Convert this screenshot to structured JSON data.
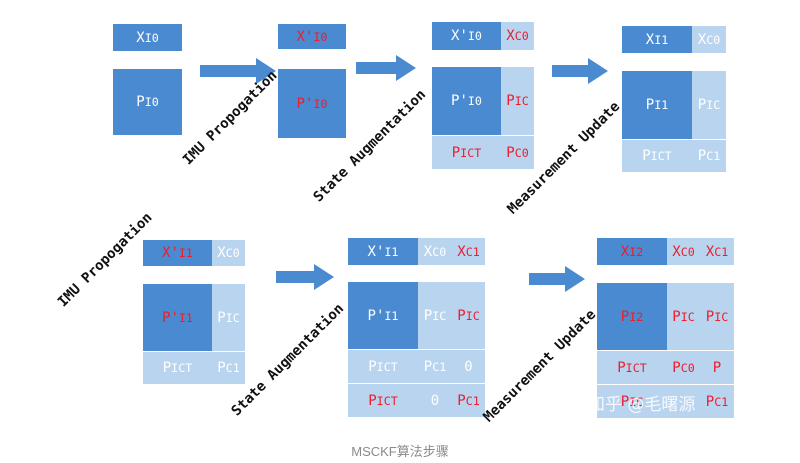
{
  "row1": {
    "s1": {
      "x": "X",
      "x_sub": "I0",
      "p": "P",
      "p_sub": "I0"
    },
    "a1": {
      "label": "IMU Propogation"
    },
    "s2": {
      "x": "X'",
      "x_sub": "I0",
      "p": "P'",
      "p_sub": "I0"
    },
    "a2": {
      "label": "State Augmentation"
    },
    "s3": {
      "x": "X'",
      "x_sub": "I0",
      "xc": "X",
      "xc_sub": "C0",
      "p": "P'",
      "p_sub": "I0",
      "pic": "P",
      "pic_sub": "IC",
      "pict": "P",
      "pict_sub": "IC",
      "pict_sup": "T",
      "pc": "P",
      "pc_sub": "C0"
    },
    "a3": {
      "label": "Measurement Update"
    },
    "s4": {
      "x": "X",
      "x_sub": "I1",
      "xc": "X",
      "xc_sub": "C0",
      "p": "P",
      "p_sub": "I1",
      "pic": "P",
      "pic_sub": "IC",
      "pict": "P",
      "pict_sub": "IC",
      "pict_sup": "T",
      "pc": "P",
      "pc_sub": "C1"
    }
  },
  "row2": {
    "a0": {
      "label": "IMU Propogation"
    },
    "s5": {
      "x": "X'",
      "x_sub": "I1",
      "xc": "X",
      "xc_sub": "C0",
      "p": "P'",
      "p_sub": "I1",
      "pic": "P",
      "pic_sub": "IC",
      "pict": "P",
      "pict_sub": "IC",
      "pict_sup": "T",
      "pc": "P",
      "pc_sub": "C1"
    },
    "a1": {
      "label": "State Augmentation"
    },
    "s6": {
      "x": "X'",
      "x_sub": "I1",
      "xc0": "X",
      "xc0_sub": "C0",
      "xc1": "X",
      "xc1_sub": "C1",
      "p": "P'",
      "p_sub": "I1",
      "pic1": "P",
      "pic1_sub": "IC",
      "pic2": "P",
      "pic2_sub": "IC",
      "pict1": "P",
      "pict1_sub": "IC",
      "pict1_sup": "T",
      "pc1": "P",
      "pc1_sub": "C1",
      "zero1": "0",
      "pict2": "P",
      "pict2_sub": "IC",
      "pict2_sup": "T",
      "zero2": "0",
      "pc1b": "P",
      "pc1b_sub": "C1"
    },
    "a2": {
      "label": "Measurement Update"
    },
    "s7": {
      "x": "X",
      "x_sub": "I2",
      "xc0": "X",
      "xc0_sub": "C0",
      "xc1": "X",
      "xc1_sub": "C1",
      "p": "P",
      "p_sub": "I2",
      "pic1": "P",
      "pic1_sub": "IC",
      "pic2": "P",
      "pic2_sub": "IC",
      "pict1": "P",
      "pict1_sub": "IC",
      "pict1_sup": "T",
      "pc0": "P",
      "pc0_sub": "C0",
      "p_partial": "P",
      "pict2": "P",
      "pict2_sub": "IC",
      "pc1": "P",
      "pc1_sub": "C1"
    }
  },
  "caption": "MSCKF算法步骤",
  "watermark": "知乎 @毛曙源",
  "colors": {
    "dark_block": "#4a8ad0",
    "light_block": "#b9d4ee",
    "arrow": "#4a8ad0",
    "red_text": "#ee1c2e",
    "white_text": "#ffffff"
  }
}
